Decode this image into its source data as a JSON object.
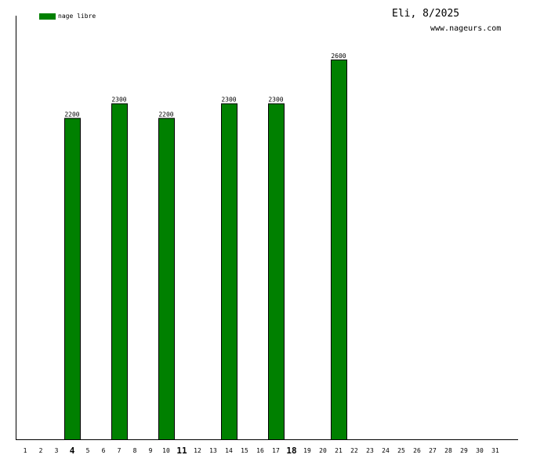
{
  "chart_data": {
    "type": "bar",
    "title": "Eli, 8/2025",
    "subtitle": "www.nageurs.com",
    "legend": {
      "position": "top-left",
      "entries": [
        {
          "label": "nage libre",
          "color": "#008000"
        }
      ]
    },
    "series": [
      {
        "name": "nage libre",
        "color": "#008000"
      }
    ],
    "categories": [
      "1",
      "2",
      "3",
      "4",
      "5",
      "6",
      "7",
      "8",
      "9",
      "10",
      "11",
      "12",
      "13",
      "14",
      "15",
      "16",
      "17",
      "18",
      "19",
      "20",
      "21",
      "22",
      "23",
      "24",
      "25",
      "26",
      "27",
      "28",
      "29",
      "30",
      "31"
    ],
    "bold_categories": [
      "4",
      "11",
      "18"
    ],
    "values": [
      0,
      0,
      0,
      2200,
      0,
      0,
      2300,
      0,
      0,
      2200,
      0,
      0,
      0,
      2300,
      0,
      0,
      2300,
      0,
      0,
      0,
      2600,
      0,
      0,
      0,
      0,
      0,
      0,
      0,
      0,
      0,
      0
    ],
    "ylim": [
      0,
      2900
    ],
    "grid": false,
    "xlabel": "",
    "ylabel": ""
  }
}
